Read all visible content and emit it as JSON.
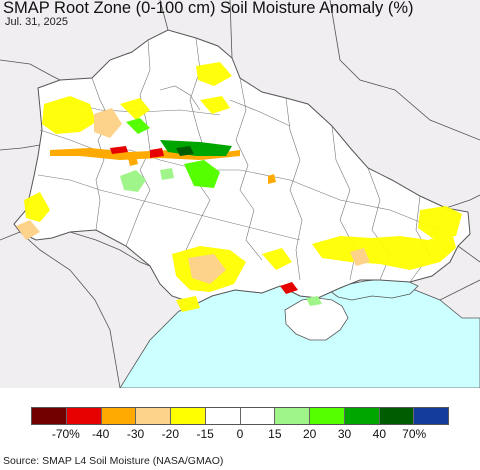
{
  "title": "SMAP Root Zone (0-100 cm) Soil Moisture Anomaly (%)",
  "date": "Jul. 31, 2025",
  "source": "Source: SMAP L4 Soil Moisture (NASA/GMAO)",
  "colors": {
    "background_land": "#f0eef0",
    "normal": "#ffffff",
    "sea": "#ccffff",
    "borders": "#555555"
  },
  "legend": {
    "colors": [
      "#730000",
      "#e60000",
      "#ffaa00",
      "#fdd28a",
      "#ffff00",
      "#ffffff",
      "#ffffff",
      "#a0f58a",
      "#55ff00",
      "#00a600",
      "#005c00",
      "#143c9c"
    ],
    "labels": [
      "-70%",
      "-40",
      "-30",
      "-20",
      "-15",
      "0",
      "15",
      "20",
      "30",
      "40",
      "70%"
    ]
  }
}
